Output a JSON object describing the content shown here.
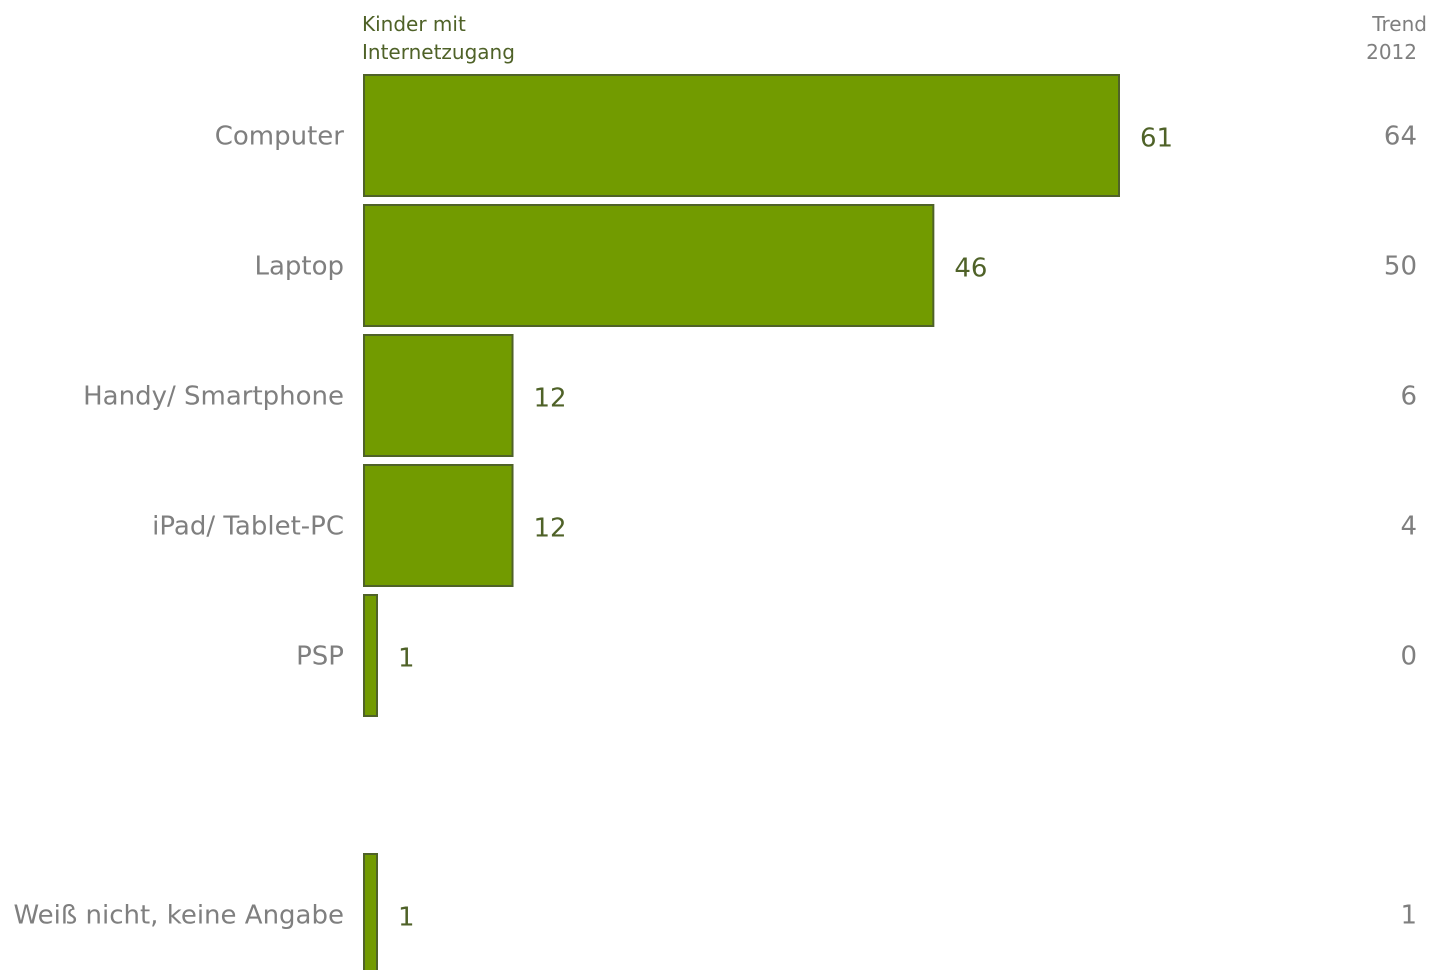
{
  "chart_data": {
    "type": "bar",
    "orientation": "horizontal",
    "series_title_lines": [
      "Kinder mit",
      "Internetzugang"
    ],
    "trend_title_lines": [
      "Trend",
      "2012"
    ],
    "categories": [
      "Computer",
      "Laptop",
      "Handy/ Smartphone",
      "iPad/ Tablet-PC",
      "PSP",
      "Weiß nicht, keine Angabe"
    ],
    "values": [
      61,
      46,
      12,
      12,
      1,
      1
    ],
    "trend_values": [
      64,
      50,
      6,
      4,
      0,
      1
    ],
    "bar_color": "#729b00",
    "bar_border_color": "#4f6228",
    "value_label_color": "#4f6228",
    "text_color": "#7f7f7f"
  }
}
